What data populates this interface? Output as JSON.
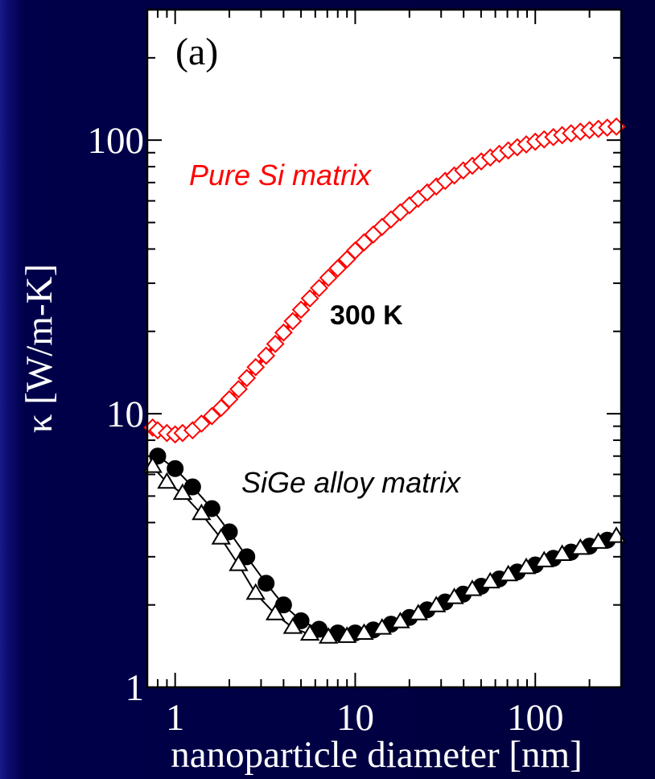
{
  "chart_data": {
    "type": "line",
    "panel_label": "(a)",
    "xlabel": "nanoparticle diameter [nm]",
    "ylabel": "κ [W/m-K]",
    "xscale": "log",
    "yscale": "log",
    "xlim": [
      0.7,
      300
    ],
    "ylim": [
      1,
      300
    ],
    "x_tick_labels": [
      "1",
      "10",
      "100"
    ],
    "y_tick_labels": [
      "1",
      "10",
      "100"
    ],
    "annotations": {
      "pure": "Pure Si matrix",
      "temperature": "300 K",
      "alloy": "SiGe alloy matrix"
    },
    "colors": {
      "pure": "#ff0000",
      "alloy": "#000000",
      "background": "#00003c",
      "plot_area": "#ffffff"
    },
    "series": [
      {
        "marker": "open-diamond",
        "color": "#ff0000",
        "x": [
          0.75,
          0.8,
          0.9,
          1.0,
          1.1,
          1.25,
          1.4,
          1.6,
          1.8,
          2.0,
          2.25,
          2.5,
          2.8,
          3.2,
          3.6,
          4.0,
          4.5,
          5.0,
          5.6,
          6.3,
          7.1,
          8.0,
          9.0,
          10,
          11.2,
          12.6,
          14.1,
          15.8,
          17.8,
          20,
          22.4,
          25.1,
          28.2,
          31.6,
          35.5,
          39.8,
          44.7,
          50.1,
          56.2,
          63.1,
          70.8,
          79.4,
          89.1,
          100,
          112,
          126,
          141,
          158,
          178,
          200,
          224,
          251,
          282
        ],
        "values": [
          8.9,
          8.7,
          8.5,
          8.4,
          8.5,
          8.7,
          9.2,
          9.8,
          10.5,
          11.3,
          12.3,
          13.5,
          14.8,
          16.3,
          18.0,
          19.8,
          21.8,
          24.0,
          26.4,
          28.8,
          31.4,
          34.0,
          36.7,
          39.5,
          42.3,
          45.2,
          48.2,
          51.3,
          54.5,
          57.8,
          61.1,
          64.4,
          67.7,
          71.0,
          74.3,
          77.5,
          80.6,
          83.6,
          86.4,
          89.1,
          91.7,
          94.2,
          96.5,
          98.7,
          100.7,
          102.6,
          104.3,
          105.9,
          107.4,
          108.8,
          110.0,
          111.1,
          112.1
        ]
      },
      {
        "marker": "filled-circle",
        "color": "#000000",
        "x": [
          0.8,
          1.0,
          1.25,
          1.6,
          2.0,
          2.5,
          3.2,
          4.0,
          5.0,
          6.3,
          8.0,
          10,
          12.6,
          15.8,
          20,
          25.1,
          31.6,
          39.8,
          50.1,
          63.1,
          79.4,
          100,
          126,
          158,
          200,
          251
        ],
        "values": [
          7.0,
          6.3,
          5.4,
          4.5,
          3.7,
          3.0,
          2.4,
          2.0,
          1.75,
          1.63,
          1.58,
          1.58,
          1.62,
          1.7,
          1.8,
          1.92,
          2.05,
          2.19,
          2.34,
          2.49,
          2.64,
          2.8,
          2.96,
          3.12,
          3.28,
          3.45
        ]
      },
      {
        "marker": "open-triangle",
        "color": "#000000",
        "x": [
          0.75,
          0.9,
          1.1,
          1.4,
          1.8,
          2.25,
          2.8,
          3.6,
          4.5,
          5.6,
          7.1,
          9.0,
          11.2,
          14.1,
          17.8,
          22.4,
          28.2,
          35.5,
          44.7,
          56.2,
          70.8,
          89.1,
          112,
          141,
          178,
          224,
          282
        ],
        "values": [
          6.4,
          5.6,
          5.1,
          4.3,
          3.5,
          2.8,
          2.2,
          1.85,
          1.65,
          1.56,
          1.52,
          1.53,
          1.57,
          1.64,
          1.73,
          1.85,
          1.98,
          2.12,
          2.27,
          2.42,
          2.57,
          2.73,
          2.89,
          3.05,
          3.21,
          3.38,
          3.55
        ]
      }
    ]
  }
}
